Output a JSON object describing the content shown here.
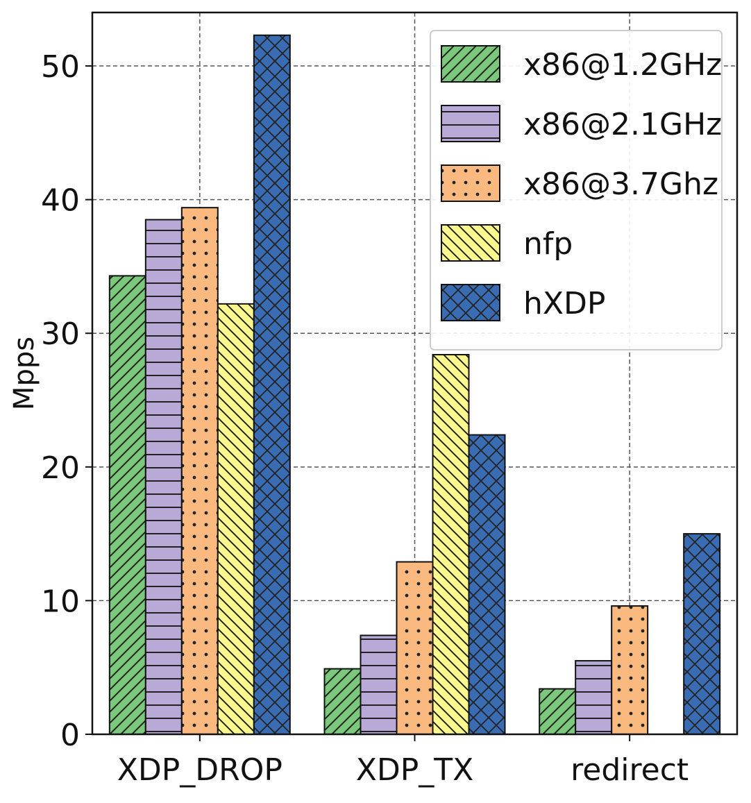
{
  "chart_data": {
    "type": "bar",
    "title": "",
    "xlabel": "",
    "ylabel": "Mpps",
    "ylim": [
      0,
      54
    ],
    "yticks": [
      0,
      10,
      20,
      30,
      40,
      50
    ],
    "grid": true,
    "legend_position": "top-right",
    "categories": [
      "XDP_DROP",
      "XDP_TX",
      "redirect"
    ],
    "series": [
      {
        "name": "x86@1.2GHz",
        "color": "#7bc77b",
        "hatch": "diagonal-forward",
        "values": [
          34.3,
          4.9,
          3.4
        ]
      },
      {
        "name": "x86@2.1GHz",
        "color": "#b9a9d6",
        "hatch": "horizontal",
        "values": [
          38.5,
          7.4,
          5.5
        ]
      },
      {
        "name": "x86@3.7Ghz",
        "color": "#f9b97f",
        "hatch": "dots",
        "values": [
          39.4,
          12.9,
          9.6
        ]
      },
      {
        "name": "nfp",
        "color": "#fdfb8e",
        "hatch": "diagonal-back",
        "values": [
          32.2,
          28.4,
          0
        ]
      },
      {
        "name": "hXDP",
        "color": "#3a6cb3",
        "hatch": "crosshatch",
        "values": [
          52.3,
          22.4,
          15.0
        ]
      }
    ]
  }
}
